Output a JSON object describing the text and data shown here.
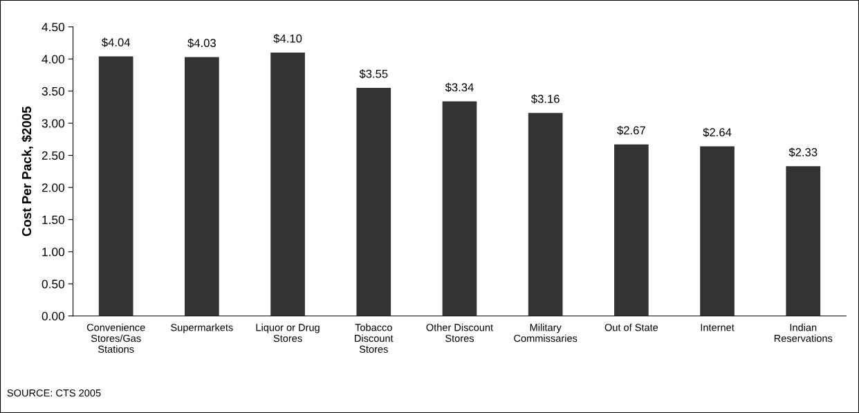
{
  "chart_data": {
    "type": "bar",
    "ylabel": "Cost Per Pack, $2005",
    "categories": [
      "Convenience Stores/Gas Stations",
      "Supermarkets",
      "Liquor or Drug Stores",
      "Tobacco Discount Stores",
      "Other Discount Stores",
      "Military Commissaries",
      "Out of State",
      "Internet",
      "Indian Reservations"
    ],
    "values": [
      4.04,
      4.03,
      4.1,
      3.55,
      3.34,
      3.16,
      2.67,
      2.64,
      2.33
    ],
    "value_labels": [
      "$4.04",
      "$4.03",
      "$4.10",
      "$3.55",
      "$3.34",
      "$3.16",
      "$2.67",
      "$2.64",
      "$2.33"
    ],
    "color": "#333333",
    "ylim": [
      0,
      4.5
    ],
    "yticks": [
      {
        "value": 0,
        "label": "0.00"
      },
      {
        "value": 0.5,
        "label": "0.50"
      },
      {
        "value": 1,
        "label": "1.00"
      },
      {
        "value": 1.5,
        "label": "1.50"
      },
      {
        "value": 2,
        "label": "2.00"
      },
      {
        "value": 2.5,
        "label": "2.50"
      },
      {
        "value": 3,
        "label": "3.00"
      },
      {
        "value": 3.5,
        "label": "3.50"
      },
      {
        "value": 4,
        "label": "4.00"
      },
      {
        "value": 4.5,
        "label": "4.50"
      }
    ],
    "grid": false,
    "legend": false,
    "annotations": [
      "SOURCE: CTS 2005"
    ]
  }
}
